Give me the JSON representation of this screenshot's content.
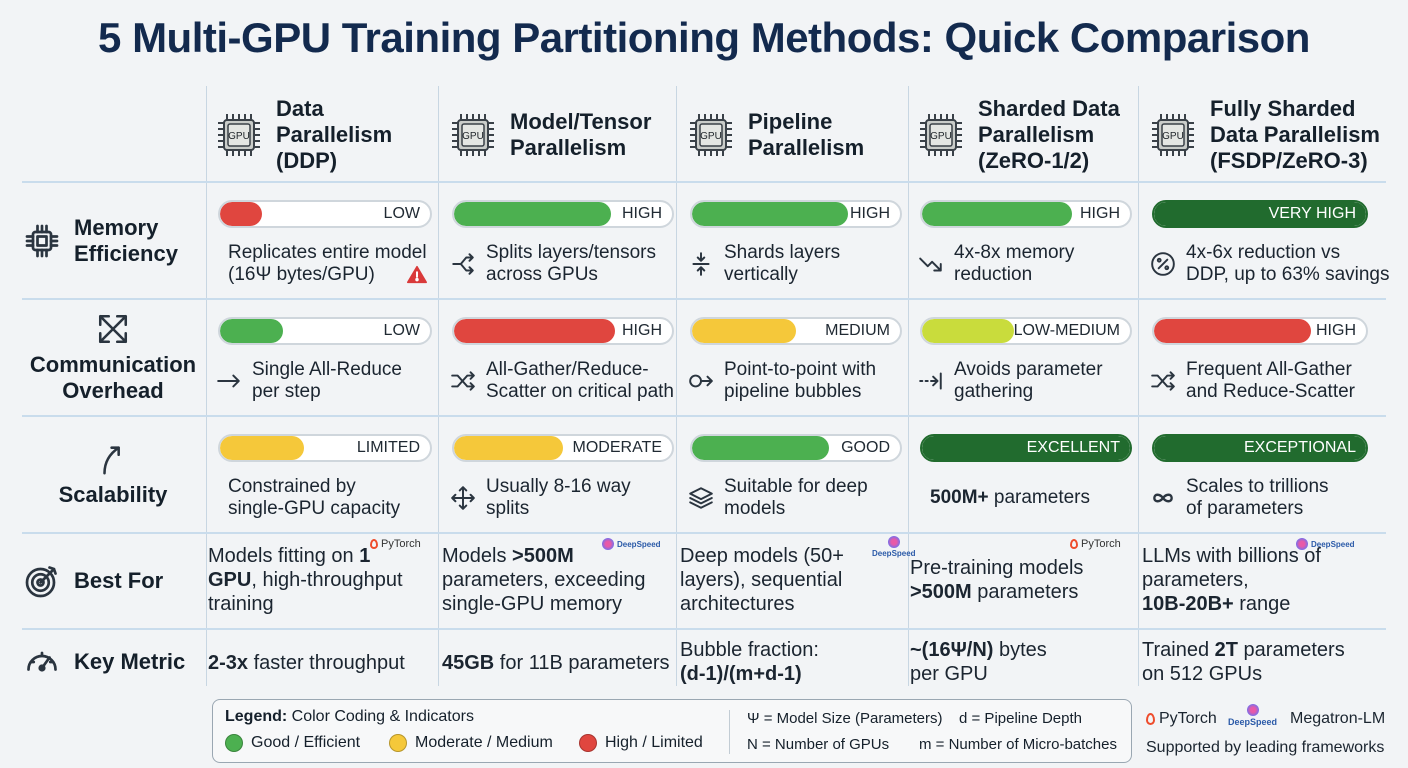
{
  "title": "5 Multi-GPU Training Partitioning Methods: Quick Comparison",
  "chip_label": "GPU",
  "columns": [
    {
      "name": [
        "Data",
        "Parallelism",
        "(DDP)"
      ]
    },
    {
      "name": [
        "Model/Tensor",
        "Parallelism"
      ]
    },
    {
      "name": [
        "Pipeline",
        "Parallelism"
      ]
    },
    {
      "name": [
        "Sharded Data",
        "Parallelism",
        "(ZeRO-1/2)"
      ]
    },
    {
      "name": [
        "Fully Sharded",
        "Data Parallelism",
        "(FSDP/ZeRO-3)"
      ]
    }
  ],
  "rows": [
    {
      "label": [
        "Memory",
        "Efficiency"
      ],
      "icon": "chip-icon"
    },
    {
      "label": [
        "Communication",
        "Overhead"
      ],
      "icon": "crossed-arrows-icon"
    },
    {
      "label": [
        "Scalability"
      ],
      "icon": "curved-arrow-up-icon"
    },
    {
      "label": [
        "Best For"
      ],
      "icon": "target-icon"
    },
    {
      "label": [
        "Key Metric"
      ],
      "icon": "gauge-icon"
    }
  ],
  "memory": [
    {
      "bar_label": "LOW",
      "level": 0.2,
      "color": "#e0463f",
      "text": [
        "Replicates entire model",
        "(16Ψ bytes/GPU)"
      ],
      "icon": "warning-icon"
    },
    {
      "bar_label": "HIGH",
      "level": 0.72,
      "color": "#4cb050",
      "text": [
        "Splits layers/tensors",
        "across GPUs"
      ],
      "icon": "split-arrow-icon"
    },
    {
      "bar_label": "HIGH",
      "level": 0.75,
      "color": "#4cb050",
      "text": [
        "Shards layers",
        "vertically"
      ],
      "icon": "vertical-split-icon"
    },
    {
      "bar_label": "HIGH",
      "level": 0.72,
      "color": "#4cb050",
      "text": [
        "4x-8x memory",
        "reduction"
      ],
      "icon": "trend-down-icon"
    },
    {
      "bar_label": "VERY HIGH",
      "level": 1.0,
      "color": "#216b2e",
      "text": [
        "4x-6x reduction vs",
        "DDP, up to 63% savings"
      ],
      "icon": "percent-icon"
    }
  ],
  "communication": [
    {
      "bar_label": "LOW",
      "level": 0.3,
      "color": "#4cb050",
      "text": [
        "Single All-Reduce",
        "per step"
      ],
      "icon": "arrow-right-icon"
    },
    {
      "bar_label": "HIGH",
      "level": 0.74,
      "color": "#e0463f",
      "text": [
        "All-Gather/Reduce-",
        "Scatter on critical path"
      ],
      "icon": "shuffle-icon"
    },
    {
      "bar_label": "MEDIUM",
      "level": 0.5,
      "color": "#f5c83a",
      "text": [
        "Point-to-point with",
        "pipeline bubbles"
      ],
      "icon": "point-arrow-icon"
    },
    {
      "bar_label": "LOW-MEDIUM",
      "level": 0.44,
      "color": "#c9dc3c",
      "text": [
        "Avoids parameter",
        "gathering"
      ],
      "icon": "dashed-arrow-icon"
    },
    {
      "bar_label": "HIGH",
      "level": 0.74,
      "color": "#e0463f",
      "text": [
        "Frequent All-Gather",
        "and Reduce-Scatter"
      ],
      "icon": "shuffle-icon"
    }
  ],
  "scalability": [
    {
      "bar_label": "LIMITED",
      "level": 0.4,
      "color": "#f5c83a",
      "text": [
        "Constrained by",
        "single-GPU capacity"
      ],
      "icon": ""
    },
    {
      "bar_label": "MODERATE",
      "level": 0.5,
      "color": "#f5c83a",
      "text": [
        "Usually 8-16 way",
        "splits"
      ],
      "icon": "expand-arrows-icon"
    },
    {
      "bar_label": "GOOD",
      "level": 0.66,
      "color": "#4cb050",
      "text": [
        "Suitable for deep",
        "models"
      ],
      "icon": "layers-icon"
    },
    {
      "bar_label": "EXCELLENT",
      "level": 1.0,
      "color": "#216b2e",
      "text_bold": "500M+",
      "text_rest": " parameters",
      "icon": ""
    },
    {
      "bar_label": "EXCEPTIONAL",
      "level": 1.0,
      "color": "#216b2e",
      "text": [
        "Scales to trillions",
        "of parameters"
      ],
      "icon": "infinity-icon"
    }
  ],
  "best_for": [
    {
      "lines": [
        [
          "Models fitting on ",
          "1"
        ],
        [
          "GPU",
          ", high-throughput"
        ],
        [
          "",
          "training"
        ]
      ],
      "logo": "PyTorch"
    },
    {
      "lines": [
        [
          "Models ",
          ">500M"
        ],
        [
          "",
          "parameters, exceeding"
        ],
        [
          "",
          "single-GPU memory"
        ]
      ],
      "logo": "DeepSpeed"
    },
    {
      "lines": [
        [
          "Deep models (50+",
          ""
        ],
        [
          "layers), sequential",
          ""
        ],
        [
          "architectures",
          ""
        ]
      ],
      "logo": "DeepSpeed"
    },
    {
      "lines": [
        [
          "Pre-training models",
          ""
        ],
        [
          ">500M",
          " parameters"
        ]
      ],
      "logo": "PyTorch"
    },
    {
      "lines": [
        [
          "LLMs with billions of",
          ""
        ],
        [
          "parameters,",
          ""
        ],
        [
          "10B-20B+",
          " range"
        ]
      ],
      "logo": "DeepSpeed"
    }
  ],
  "key_metric": [
    {
      "lines": [
        [
          "2-3x",
          " faster throughput"
        ]
      ]
    },
    {
      "lines": [
        [
          "45GB",
          " for 11B parameters"
        ]
      ]
    },
    {
      "lines": [
        [
          "Bubble fraction:",
          ""
        ],
        [
          "(d-1)/(m+d-1)",
          ""
        ]
      ],
      "bold_second": true
    },
    {
      "lines": [
        [
          "~(16Ψ/N)",
          " bytes"
        ],
        [
          "per GPU",
          ""
        ]
      ]
    },
    {
      "lines": [
        [
          "Trained ",
          "2T"
        ],
        [
          "on 512 GPUs",
          ""
        ]
      ],
      "extra": " parameters"
    }
  ],
  "legend": {
    "title_bold": "Legend:",
    "title_rest": " Color Coding & Indicators",
    "items": [
      {
        "label": "Good / Efficient",
        "color": "#4cb050"
      },
      {
        "label": "Moderate / Medium",
        "color": "#f5c83a"
      },
      {
        "label": "High / Limited",
        "color": "#e0463f"
      }
    ],
    "symbols": [
      "Ψ = Model Size (Parameters)",
      "d = Pipeline Depth",
      "N = Number of GPUs",
      "m = Number of Micro-batches"
    ]
  },
  "frameworks": {
    "names": [
      "PyTorch",
      "DeepSpeed",
      "Megatron-LM"
    ],
    "caption": "Supported by leading frameworks"
  }
}
